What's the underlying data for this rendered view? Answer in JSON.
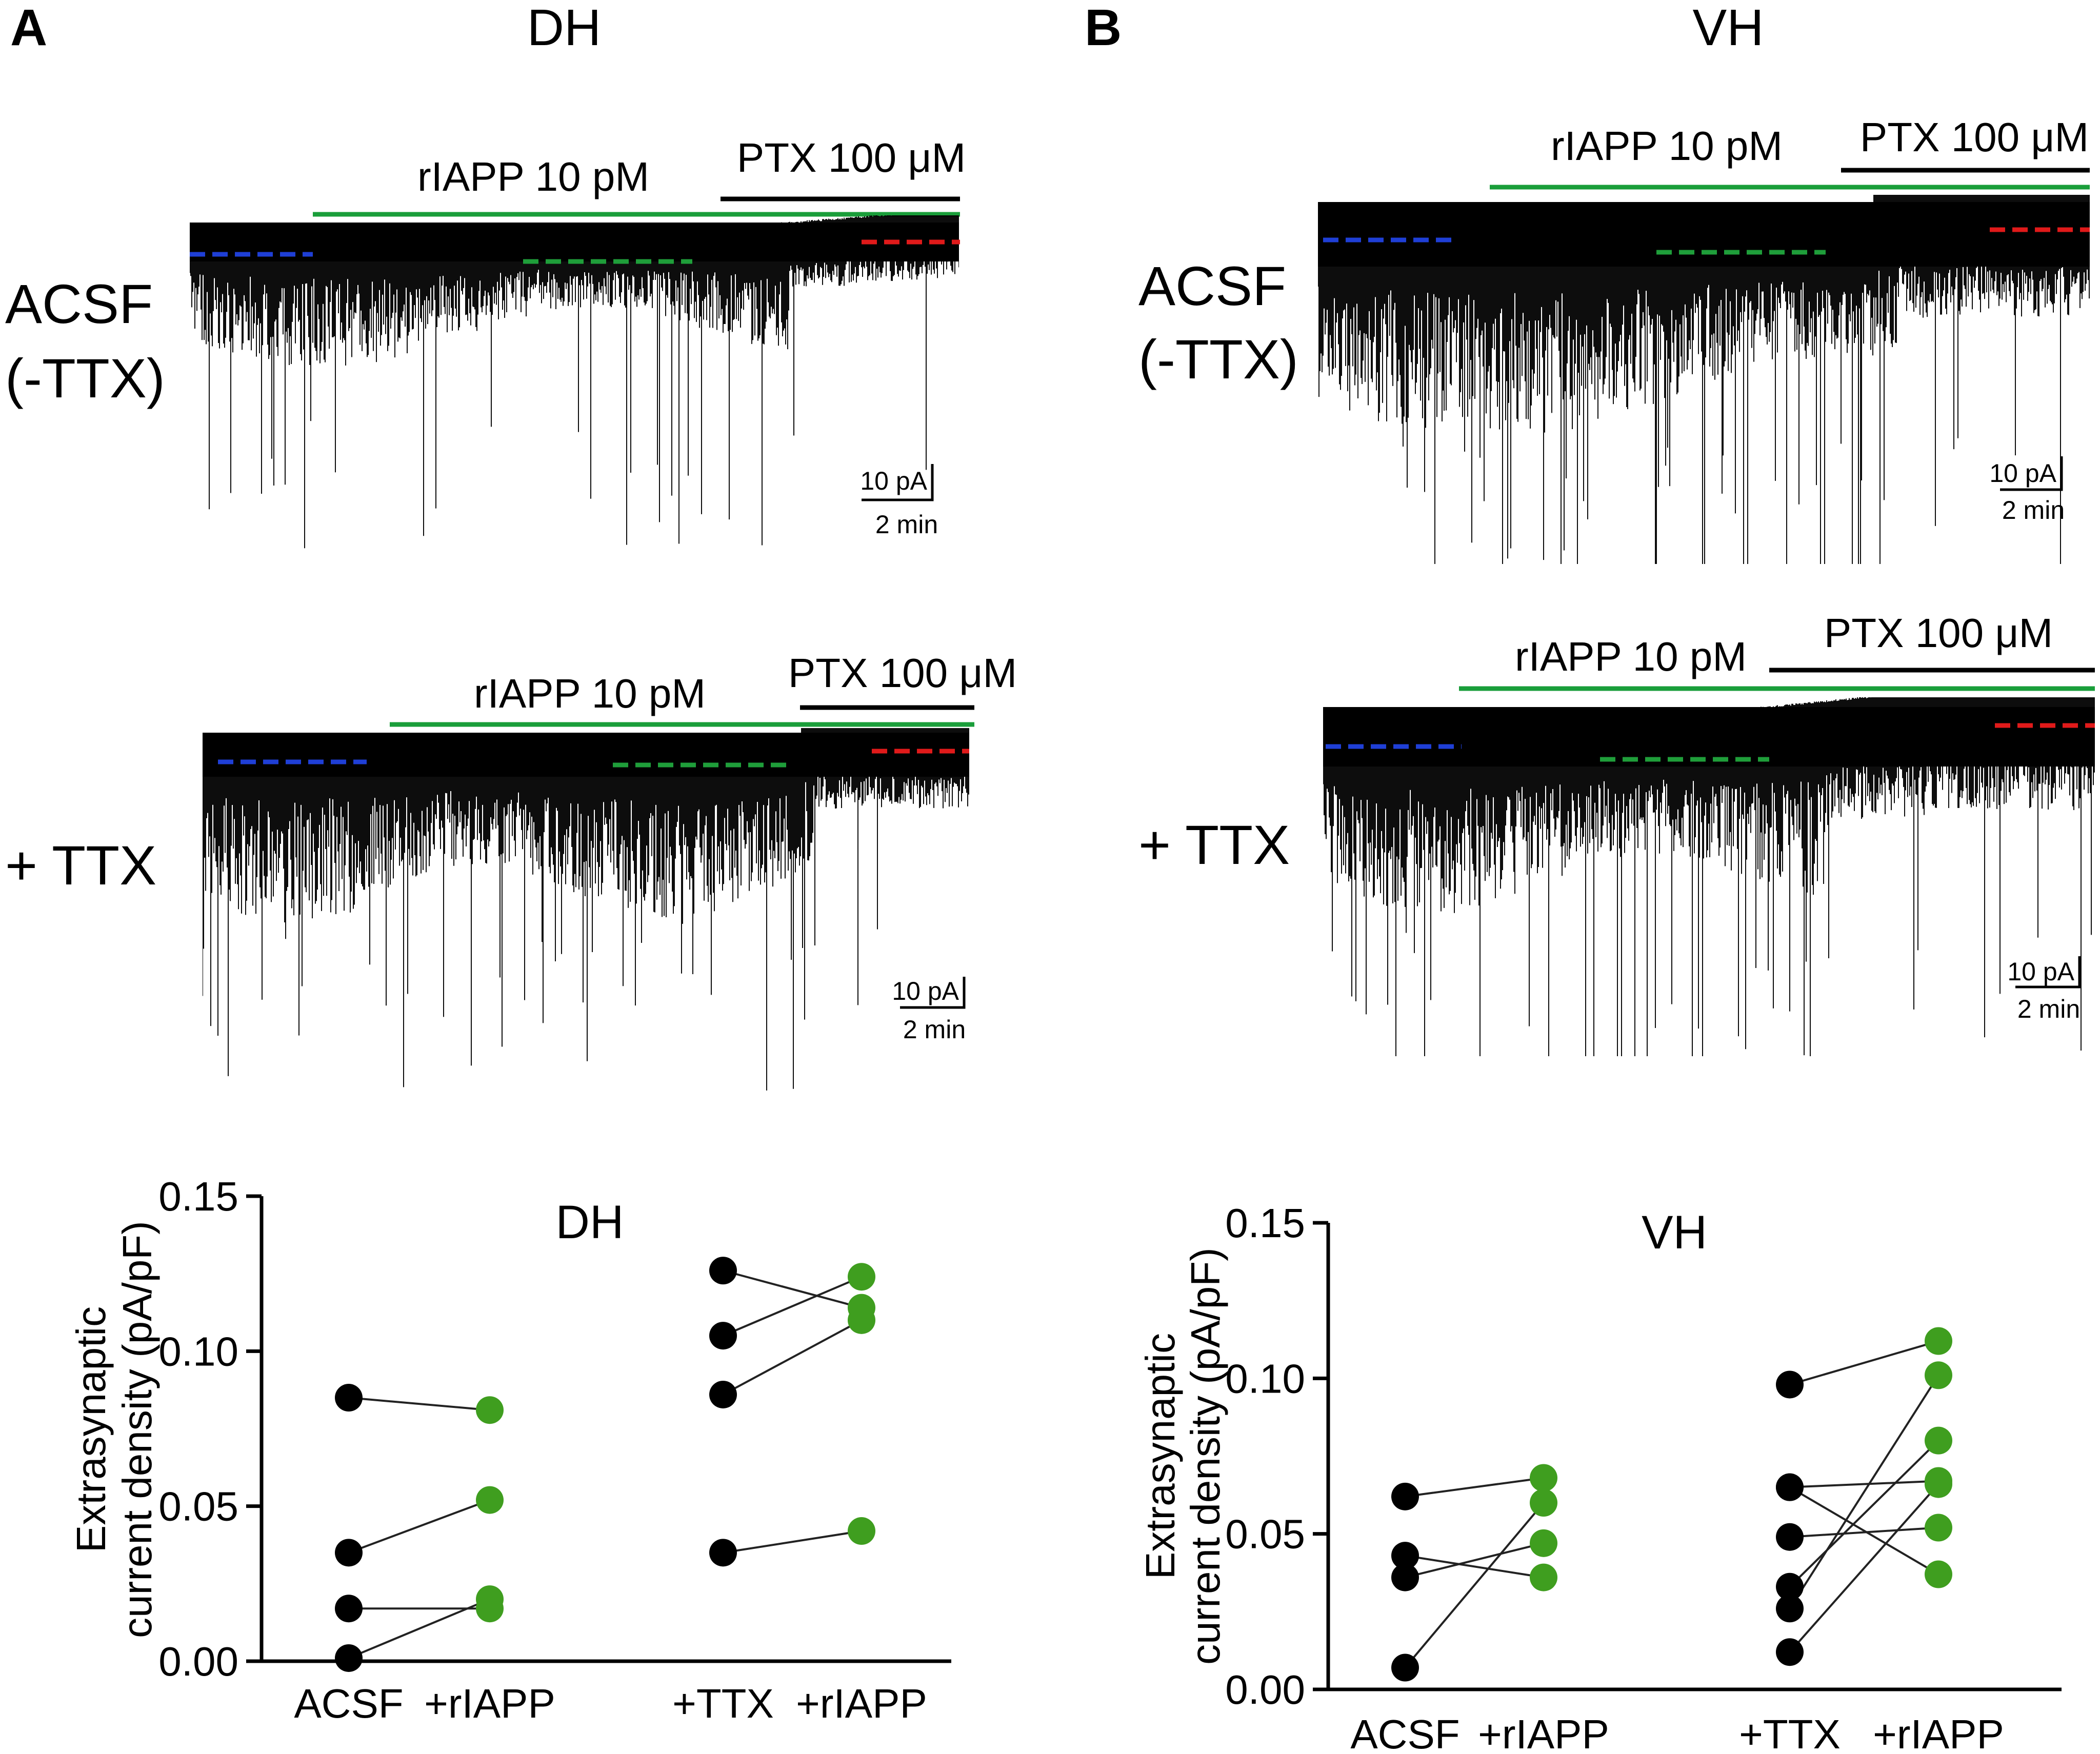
{
  "panels": {
    "A": {
      "letter": "A",
      "region": "DH",
      "traces": [
        {
          "row_label": [
            "ACSF",
            "(-TTX)"
          ],
          "drug1": "rIAPP 10 pM",
          "drug2": "PTX 100 μM",
          "scale_y": "10 pA",
          "scale_x": "2 min"
        },
        {
          "row_label": [
            "+ TTX"
          ],
          "drug1": "rIAPP 10 pM",
          "drug2": "PTX 100 μM",
          "scale_y": "10 pA",
          "scale_x": "2 min"
        }
      ]
    },
    "B": {
      "letter": "B",
      "region": "VH",
      "traces": [
        {
          "row_label": [
            "ACSF",
            "(-TTX)"
          ],
          "drug1": "rIAPP 10 pM",
          "drug2": "PTX 100 μM",
          "scale_y": "10 pA",
          "scale_x": "2 min"
        },
        {
          "row_label": [
            "+ TTX"
          ],
          "drug1": "rIAPP 10 pM",
          "drug2": "PTX 100 μM",
          "scale_y": "10 pA",
          "scale_x": "2 min"
        }
      ]
    }
  },
  "colors": {
    "control_marker": "#000000",
    "rIAPP_marker": "#3f9e1f",
    "rIAPP_bar": "#1a9e3a",
    "baseline_dash": "#1f3fd6",
    "rIAPP_dash": "#1f9e3a",
    "ptx_dash": "#e01a1a",
    "trace": "#000000"
  },
  "chart_data": [
    {
      "type": "scatter",
      "title": "DH",
      "xlabel": "",
      "ylabel": [
        "Extrasynaptic",
        "current density (pA/pF)"
      ],
      "ylim": [
        0,
        0.15
      ],
      "yticks": [
        "0.00",
        "0.05",
        "0.10",
        "0.15"
      ],
      "categories": [
        "ACSF",
        "+rIAPP",
        "+TTX",
        "+rIAPP"
      ],
      "pairs": [
        {
          "group": "ACSF",
          "before": [
            0.085,
            0.035,
            0.017,
            0.001
          ],
          "after": [
            0.081,
            0.052,
            0.017,
            0.02
          ]
        },
        {
          "group": "TTX",
          "before": [
            0.126,
            0.105,
            0.086,
            0.035
          ],
          "after": [
            0.114,
            0.124,
            0.11,
            0.042
          ]
        }
      ]
    },
    {
      "type": "scatter",
      "title": "VH",
      "xlabel": "",
      "ylabel": [
        "Extrasynaptic",
        "current density (pA/pF)"
      ],
      "ylim": [
        0,
        0.15
      ],
      "yticks": [
        "0.00",
        "0.05",
        "0.10",
        "0.15"
      ],
      "categories": [
        "ACSF",
        "+rIAPP",
        "+TTX",
        "+rIAPP"
      ],
      "pairs": [
        {
          "group": "ACSF",
          "before": [
            0.062,
            0.043,
            0.036,
            0.007
          ],
          "after": [
            0.068,
            0.036,
            0.047,
            0.06
          ]
        },
        {
          "group": "TTX",
          "before": [
            0.098,
            0.065,
            0.065,
            0.049,
            0.033,
            0.026,
            0.012
          ],
          "after": [
            0.112,
            0.037,
            0.067,
            0.052,
            0.08,
            0.101,
            0.066
          ]
        }
      ]
    }
  ]
}
